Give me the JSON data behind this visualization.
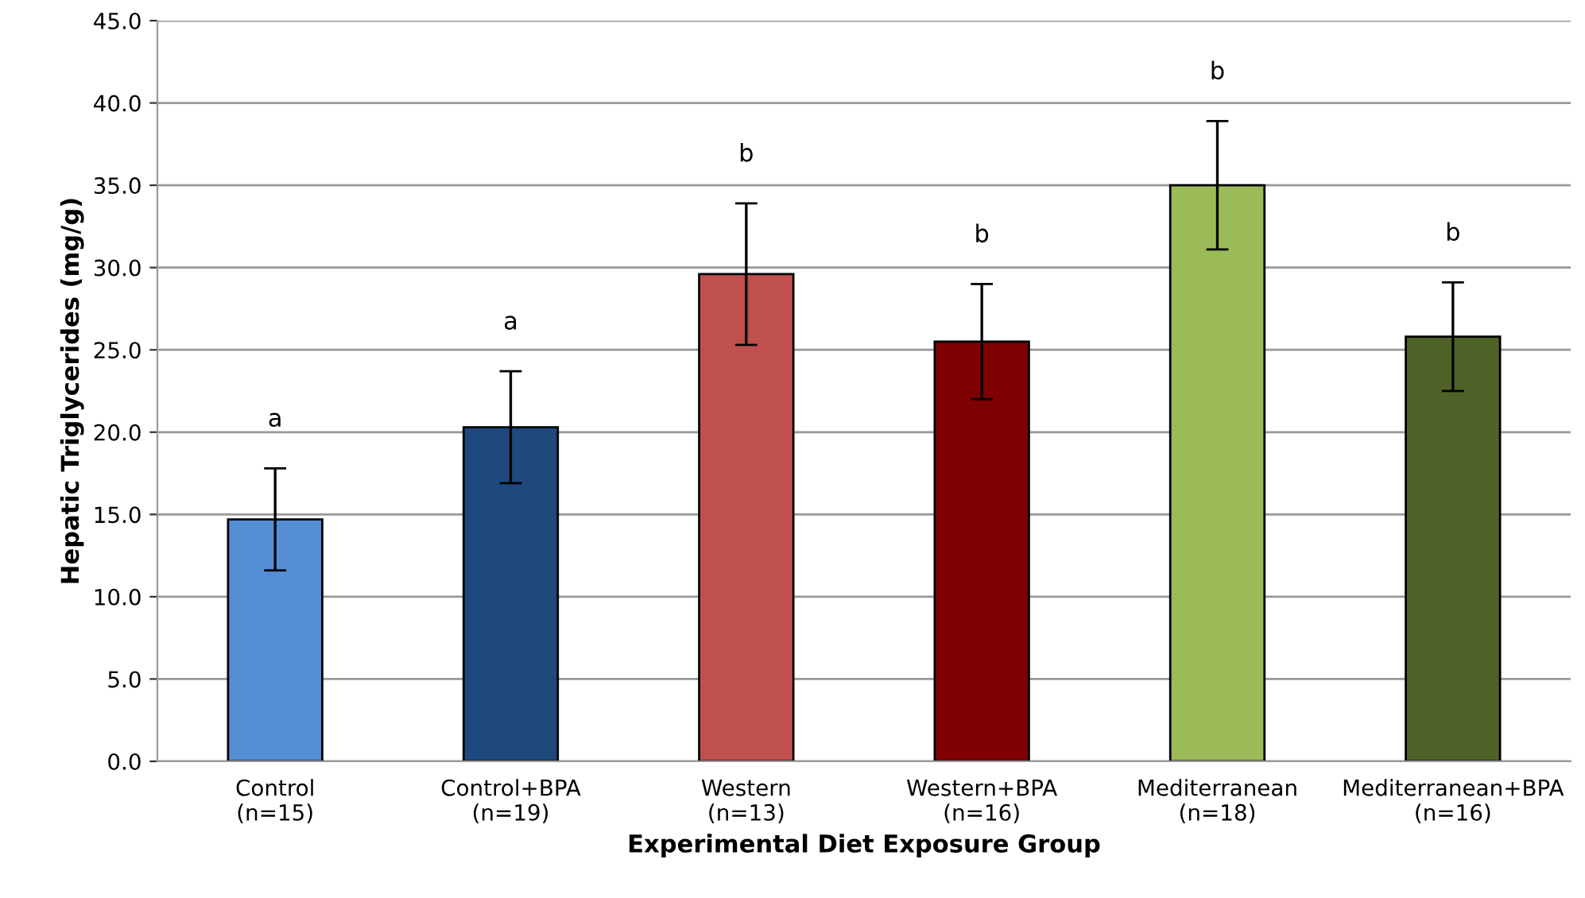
{
  "chart_data": {
    "type": "bar",
    "xlabel": "Experimental Diet Exposure Group",
    "ylabel": "Hepatic Triglycerides (mg/g)",
    "categories": [
      "Control\n(n=15)",
      "Control+BPA\n(n=19)",
      "Western\n(n=13)",
      "Western+BPA\n(n=16)",
      "Mediterranean\n(n=18)",
      "Mediterranean+BPA\n(n=16)"
    ],
    "values": [
      14.7,
      20.3,
      29.6,
      25.5,
      35.0,
      25.8
    ],
    "errors": [
      3.1,
      3.4,
      4.3,
      3.5,
      3.9,
      3.3
    ],
    "colors": [
      "#558ed5",
      "#1f497d",
      "#c0504d",
      "#7f0000",
      "#9bbb59",
      "#4f6228"
    ],
    "ylim": [
      0,
      45
    ],
    "yticks": [
      {
        "value": 0,
        "label": "0.0"
      },
      {
        "value": 5,
        "label": "5.0"
      },
      {
        "value": 10,
        "label": "10.0"
      },
      {
        "value": 15,
        "label": "15.0"
      },
      {
        "value": 20,
        "label": "20.0"
      },
      {
        "value": 25,
        "label": "25.0"
      },
      {
        "value": 30,
        "label": "30.0"
      },
      {
        "value": 35,
        "label": "35.0"
      },
      {
        "value": 40,
        "label": "40.0"
      },
      {
        "value": 45,
        "label": "45.0"
      }
    ],
    "grid": "y",
    "annotations": [
      "a",
      "a",
      "b",
      "b",
      "b",
      "b"
    ]
  }
}
